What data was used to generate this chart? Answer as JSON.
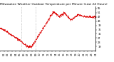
{
  "title": "Milwaukee Weather Outdoor Temperature per Minute (Last 24 Hours)",
  "line_color": "#dd0000",
  "background_color": "#ffffff",
  "plot_bg_color": "#ffffff",
  "vline_color": "#999999",
  "vline_positions": [
    0.22,
    0.37
  ],
  "ylim": [
    15,
    57
  ],
  "yticks": [
    19,
    23,
    27,
    31,
    35,
    39,
    43,
    47,
    51,
    55
  ],
  "title_fontsize": 3.2,
  "tick_fontsize": 2.5,
  "line_width": 0.6,
  "marker": ".",
  "marker_size": 0.8
}
